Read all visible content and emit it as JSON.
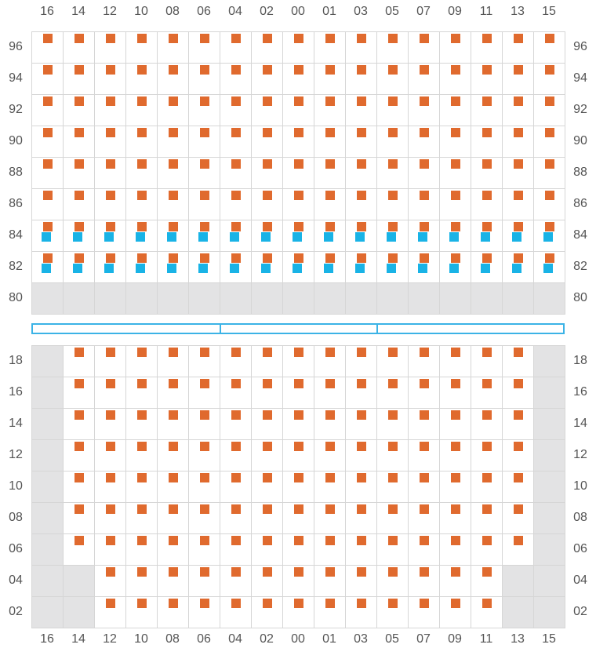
{
  "colors": {
    "primary_marker": "#e06a2e",
    "secondary_marker": "#19b3e6",
    "blocked_cell": "#e3e3e4",
    "grid_line": "#d6d6d6",
    "walkway": "#3bb3e6",
    "label": "#555555"
  },
  "columns": [
    "16",
    "14",
    "12",
    "10",
    "08",
    "06",
    "04",
    "02",
    "00",
    "01",
    "03",
    "05",
    "07",
    "09",
    "11",
    "13",
    "15"
  ],
  "upper_block": {
    "rows": [
      {
        "label": "96",
        "active": [
          0,
          16
        ],
        "secondary": false
      },
      {
        "label": "94",
        "active": [
          0,
          16
        ],
        "secondary": false
      },
      {
        "label": "92",
        "active": [
          0,
          16
        ],
        "secondary": false
      },
      {
        "label": "90",
        "active": [
          0,
          16
        ],
        "secondary": false
      },
      {
        "label": "88",
        "active": [
          0,
          16
        ],
        "secondary": false
      },
      {
        "label": "86",
        "active": [
          0,
          16
        ],
        "secondary": false
      },
      {
        "label": "84",
        "active": [
          0,
          16
        ],
        "secondary": true
      },
      {
        "label": "82",
        "active": [
          0,
          16
        ],
        "secondary": true
      },
      {
        "label": "80",
        "active": null,
        "secondary": false
      }
    ]
  },
  "walkway_segments": 3,
  "lower_block": {
    "rows": [
      {
        "label": "18",
        "active": [
          1,
          15
        ],
        "secondary": false
      },
      {
        "label": "16",
        "active": [
          1,
          15
        ],
        "secondary": false
      },
      {
        "label": "14",
        "active": [
          1,
          15
        ],
        "secondary": false
      },
      {
        "label": "12",
        "active": [
          1,
          15
        ],
        "secondary": false
      },
      {
        "label": "10",
        "active": [
          1,
          15
        ],
        "secondary": false
      },
      {
        "label": "08",
        "active": [
          1,
          15
        ],
        "secondary": false
      },
      {
        "label": "06",
        "active": [
          1,
          15
        ],
        "secondary": false
      },
      {
        "label": "04",
        "active": [
          2,
          14
        ],
        "secondary": false
      },
      {
        "label": "02",
        "active": [
          2,
          14
        ],
        "secondary": false
      }
    ]
  }
}
